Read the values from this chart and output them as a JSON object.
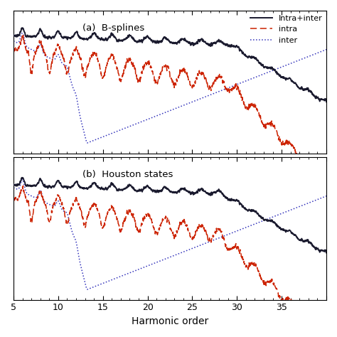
{
  "title_a": "(a)  B-splines",
  "title_b": "(b)  Houston states",
  "xlabel": "Harmonic order",
  "legend_labels": [
    "Intra+inter",
    "intra",
    "inter"
  ],
  "legend_colors": [
    "#1a1a2e",
    "#cc2200",
    "#3333bb"
  ],
  "xmin": 0,
  "xmax": 35,
  "background_color": "#ffffff",
  "figsize": [
    4.74,
    4.74
  ],
  "dpi": 100
}
